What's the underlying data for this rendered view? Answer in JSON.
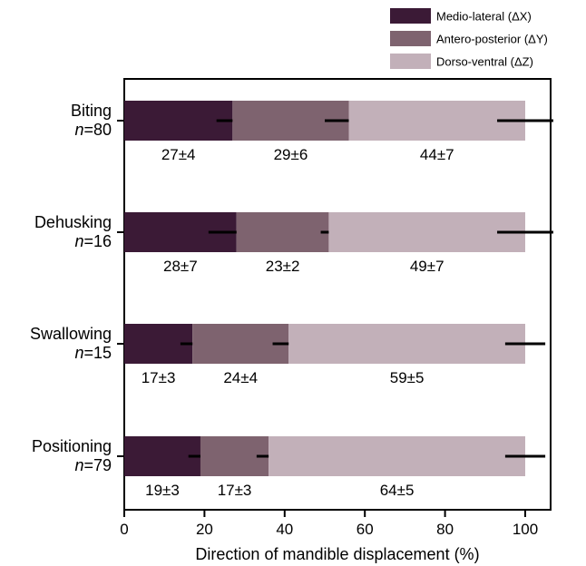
{
  "chart_data": {
    "type": "bar",
    "orientation": "horizontal",
    "stacked": true,
    "xlabel": "Direction of mandible displacement (%)",
    "xlim": [
      0,
      107
    ],
    "xticks": [
      "0",
      "20",
      "40",
      "60",
      "80",
      "100"
    ],
    "categories": [
      {
        "name": "Biting",
        "n_label": "n=80"
      },
      {
        "name": "Dehusking",
        "n_label": "n=16"
      },
      {
        "name": "Swallowing",
        "n_label": "n=15"
      },
      {
        "name": "Positioning",
        "n_label": "n=79"
      }
    ],
    "series": [
      {
        "name": "Medio-lateral (ΔX)",
        "color": "#3b1a36",
        "values": [
          27,
          28,
          17,
          19
        ],
        "errors": [
          4,
          7,
          3,
          3
        ],
        "labels": [
          "27±4",
          "28±7",
          "17±3",
          "19±3"
        ]
      },
      {
        "name": "Antero-posterior (ΔY)",
        "color": "#7e636f",
        "values": [
          29,
          23,
          24,
          17
        ],
        "errors": [
          6,
          2,
          4,
          3
        ],
        "labels": [
          "29±6",
          "23±2",
          "24±4",
          "17±3"
        ]
      },
      {
        "name": "Dorso-ventral (ΔZ)",
        "color": "#c2b0b9",
        "values": [
          44,
          49,
          59,
          64
        ],
        "errors": [
          7,
          7,
          5,
          5
        ],
        "labels": [
          "44±7",
          "49±7",
          "59±5",
          "64±5"
        ]
      }
    ],
    "legend_position": "top-right",
    "grid": false
  }
}
